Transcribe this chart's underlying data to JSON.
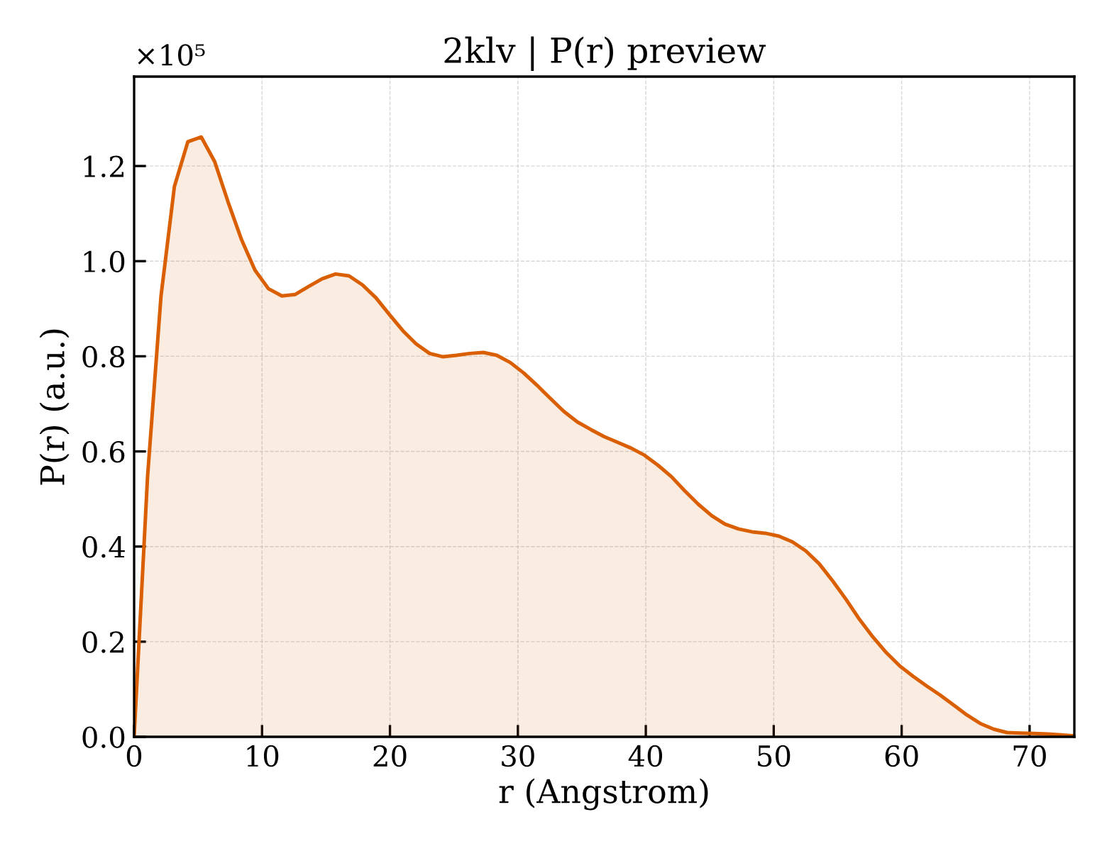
{
  "chart_data": {
    "type": "area",
    "title": "2klv | P(r) preview",
    "xlabel": "r (Angstrom)",
    "ylabel": "P(r) (a.u.)",
    "annotations": [
      "×10⁵"
    ],
    "color": "#d95f02",
    "x": [
      0,
      1.05,
      2.1,
      3.15,
      4.2,
      5.25,
      6.3,
      7.35,
      8.4,
      9.45,
      10.5,
      11.55,
      12.6,
      13.65,
      14.7,
      15.75,
      16.8,
      17.85,
      18.9,
      19.95,
      21,
      22.05,
      23.1,
      24.15,
      25.2,
      26.25,
      27.3,
      28.35,
      29.4,
      30.45,
      31.5,
      32.55,
      33.6,
      34.65,
      35.7,
      36.75,
      37.8,
      38.85,
      39.9,
      40.95,
      42,
      43.05,
      44.1,
      45.15,
      46.2,
      47.25,
      48.3,
      49.35,
      50.4,
      51.45,
      52.5,
      53.55,
      54.6,
      55.65,
      56.7,
      57.75,
      58.8,
      59.85,
      60.9,
      61.95,
      63,
      64.05,
      65.1,
      66.15,
      67.2,
      68.25,
      69.3,
      70.35,
      71.4,
      72.45,
      73.5
    ],
    "values": [
      0,
      0.547,
      0.926,
      1.157,
      1.251,
      1.261,
      1.209,
      1.124,
      1.045,
      0.981,
      0.942,
      0.927,
      0.93,
      0.947,
      0.963,
      0.973,
      0.969,
      0.95,
      0.923,
      0.888,
      0.854,
      0.826,
      0.806,
      0.799,
      0.802,
      0.806,
      0.808,
      0.802,
      0.787,
      0.765,
      0.739,
      0.711,
      0.684,
      0.662,
      0.646,
      0.631,
      0.619,
      0.607,
      0.592,
      0.571,
      0.547,
      0.517,
      0.489,
      0.465,
      0.447,
      0.437,
      0.431,
      0.428,
      0.422,
      0.41,
      0.391,
      0.364,
      0.328,
      0.289,
      0.247,
      0.21,
      0.177,
      0.149,
      0.127,
      0.107,
      0.088,
      0.067,
      0.046,
      0.028,
      0.016,
      0.009,
      0.008,
      0.007,
      0.006,
      0.004,
      0.002
    ],
    "xlim": [
      0,
      73.5
    ],
    "ylim": [
      0,
      1.388
    ],
    "xticks": [
      0,
      10,
      20,
      30,
      40,
      50,
      60,
      70
    ],
    "yticks": [
      {
        "value": 0,
        "label": "0.0"
      },
      0.2,
      0.4,
      0.6,
      0.8,
      {
        "value": 1,
        "label": "1.0"
      },
      1.2
    ],
    "grid": true
  }
}
